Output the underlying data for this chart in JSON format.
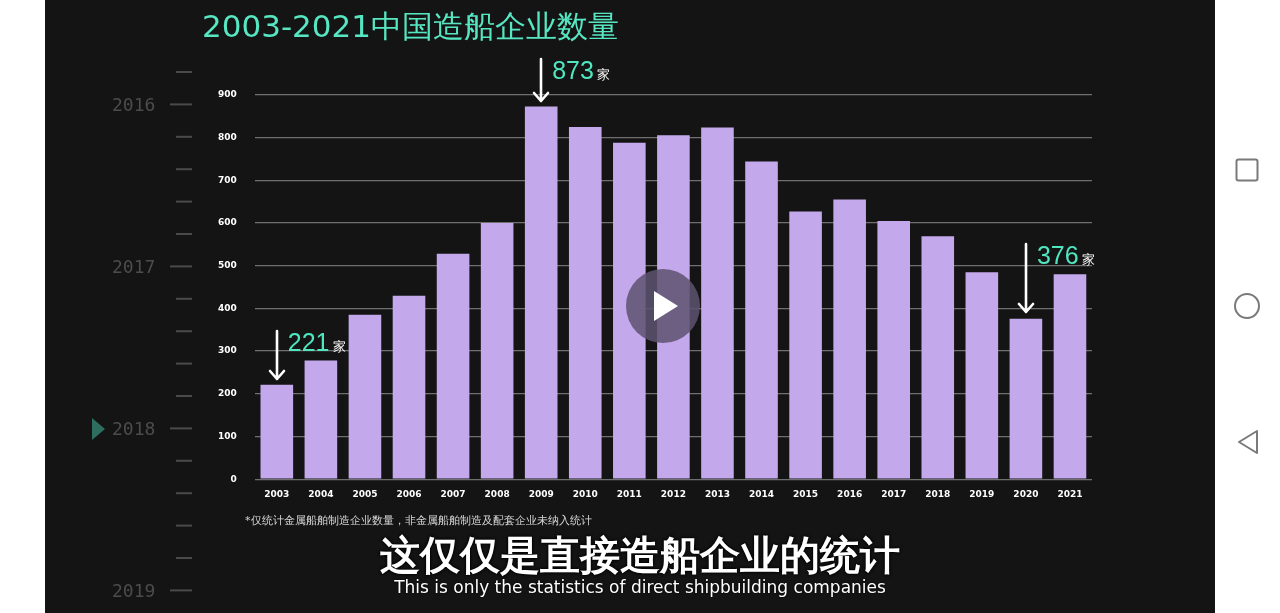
{
  "chart_data": {
    "type": "bar",
    "title": "2003-2021中国造船企业数量",
    "categories": [
      "2003",
      "2004",
      "2005",
      "2006",
      "2007",
      "2008",
      "2009",
      "2010",
      "2011",
      "2012",
      "2013",
      "2014",
      "2015",
      "2016",
      "2017",
      "2018",
      "2019",
      "2020",
      "2021"
    ],
    "values": [
      221,
      278,
      385,
      430,
      528,
      600,
      873,
      825,
      788,
      806,
      824,
      744,
      627,
      655,
      605,
      569,
      485,
      376,
      480
    ],
    "color": "#c3a8ec",
    "value_labels": [
      "221家",
      null,
      null,
      null,
      null,
      null,
      "873家",
      null,
      null,
      null,
      null,
      null,
      null,
      null,
      null,
      null,
      null,
      "376家",
      null
    ],
    "ylim": [
      0,
      900
    ],
    "yticks": [
      0,
      100,
      200,
      300,
      400,
      500,
      600,
      700,
      800,
      900
    ],
    "grid": "y",
    "annotations": [
      "*仅统计金属船舶制造企业数量，非金属船舶制造及配套企业未纳入统计",
      "这仅仅是直接造船企业的统计",
      "This is only the statistics of direct shipbuilding companies",
      "2016",
      "2017",
      "2018",
      "2019"
    ]
  }
}
